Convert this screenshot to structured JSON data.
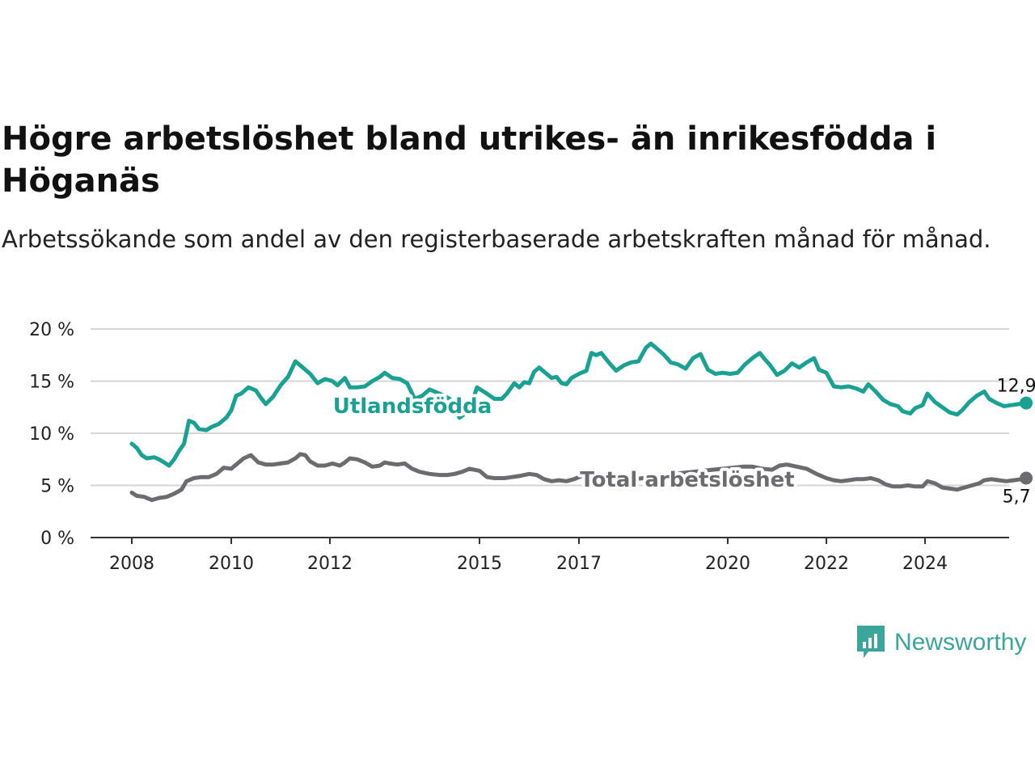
{
  "title": "Högre arbetslöshet bland utrikes- än inrikesfödda i Höganäs",
  "subtitle": "Arbetssökande som andel av den registerbaserade arbetskraften månad för månad.",
  "brand": {
    "name": "Newsworthy",
    "color": "#3aa59a"
  },
  "chart_data": {
    "type": "line",
    "x_unit": "year",
    "xlim": [
      2008,
      2025
    ],
    "ylim": [
      0,
      20
    ],
    "y_ticks": [
      0,
      5,
      10,
      15,
      20
    ],
    "y_tick_labels": [
      "0 %",
      "5 %",
      "10 %",
      "15 %",
      "20 %"
    ],
    "x_ticks": [
      2008,
      2010,
      2012,
      2015,
      2017,
      2020,
      2022,
      2024
    ],
    "x_tick_labels": [
      "2008",
      "2010",
      "2012",
      "2015",
      "2017",
      "2020",
      "2022",
      "2024"
    ],
    "grid": true,
    "series": [
      {
        "name": "Utlandsfödda",
        "color": "#1aa193",
        "end_label": "12,9 %",
        "points": [
          [
            2008.0,
            9.0
          ],
          [
            2008.1,
            8.6
          ],
          [
            2008.2,
            7.9
          ],
          [
            2008.3,
            7.6
          ],
          [
            2008.45,
            7.7
          ],
          [
            2008.55,
            7.5
          ],
          [
            2008.65,
            7.2
          ],
          [
            2008.75,
            6.9
          ],
          [
            2008.85,
            7.5
          ],
          [
            2008.95,
            8.3
          ],
          [
            2009.05,
            9.0
          ],
          [
            2009.15,
            11.2
          ],
          [
            2009.25,
            11.0
          ],
          [
            2009.35,
            10.4
          ],
          [
            2009.5,
            10.3
          ],
          [
            2009.6,
            10.6
          ],
          [
            2009.75,
            10.9
          ],
          [
            2009.9,
            11.5
          ],
          [
            2010.0,
            12.2
          ],
          [
            2010.1,
            13.6
          ],
          [
            2010.2,
            13.8
          ],
          [
            2010.35,
            14.4
          ],
          [
            2010.5,
            14.1
          ],
          [
            2010.6,
            13.4
          ],
          [
            2010.7,
            12.8
          ],
          [
            2010.85,
            13.5
          ],
          [
            2011.0,
            14.6
          ],
          [
            2011.15,
            15.4
          ],
          [
            2011.3,
            16.9
          ],
          [
            2011.45,
            16.3
          ],
          [
            2011.6,
            15.7
          ],
          [
            2011.75,
            14.8
          ],
          [
            2011.9,
            15.2
          ],
          [
            2012.05,
            15.0
          ],
          [
            2012.15,
            14.6
          ],
          [
            2012.3,
            15.3
          ],
          [
            2012.4,
            14.4
          ],
          [
            2012.55,
            14.4
          ],
          [
            2012.7,
            14.5
          ],
          [
            2012.85,
            15.0
          ],
          [
            2013.0,
            15.4
          ],
          [
            2013.1,
            15.8
          ],
          [
            2013.25,
            15.3
          ],
          [
            2013.4,
            15.2
          ],
          [
            2013.55,
            14.8
          ],
          [
            2013.7,
            13.3
          ],
          [
            2013.85,
            13.6
          ],
          [
            2014.0,
            14.2
          ],
          [
            2014.2,
            13.8
          ],
          [
            2014.4,
            13.3
          ],
          [
            2014.6,
            11.5
          ],
          [
            2014.8,
            12.2
          ],
          [
            2014.95,
            14.4
          ],
          [
            2015.15,
            13.8
          ],
          [
            2015.3,
            13.3
          ],
          [
            2015.45,
            13.3
          ],
          [
            2015.55,
            13.8
          ],
          [
            2015.7,
            14.8
          ],
          [
            2015.8,
            14.4
          ],
          [
            2015.9,
            14.9
          ],
          [
            2016.0,
            14.8
          ],
          [
            2016.1,
            15.9
          ],
          [
            2016.2,
            16.3
          ],
          [
            2016.35,
            15.7
          ],
          [
            2016.45,
            15.3
          ],
          [
            2016.55,
            15.4
          ],
          [
            2016.65,
            14.8
          ],
          [
            2016.75,
            14.7
          ],
          [
            2016.85,
            15.3
          ],
          [
            2017.0,
            15.7
          ],
          [
            2017.15,
            16.0
          ],
          [
            2017.25,
            17.7
          ],
          [
            2017.35,
            17.5
          ],
          [
            2017.45,
            17.7
          ],
          [
            2017.6,
            16.8
          ],
          [
            2017.75,
            16.0
          ],
          [
            2017.9,
            16.5
          ],
          [
            2018.05,
            16.8
          ],
          [
            2018.2,
            16.9
          ],
          [
            2018.35,
            18.2
          ],
          [
            2018.45,
            18.6
          ],
          [
            2018.55,
            18.2
          ],
          [
            2018.7,
            17.6
          ],
          [
            2018.85,
            16.8
          ],
          [
            2019.0,
            16.6
          ],
          [
            2019.15,
            16.2
          ],
          [
            2019.3,
            17.2
          ],
          [
            2019.45,
            17.6
          ],
          [
            2019.6,
            16.1
          ],
          [
            2019.75,
            15.7
          ],
          [
            2019.9,
            15.8
          ],
          [
            2020.05,
            15.7
          ],
          [
            2020.2,
            15.8
          ],
          [
            2020.35,
            16.6
          ],
          [
            2020.5,
            17.2
          ],
          [
            2020.65,
            17.7
          ],
          [
            2020.75,
            17.1
          ],
          [
            2020.85,
            16.6
          ],
          [
            2021.0,
            15.6
          ],
          [
            2021.15,
            16.0
          ],
          [
            2021.3,
            16.7
          ],
          [
            2021.45,
            16.3
          ],
          [
            2021.6,
            16.8
          ],
          [
            2021.75,
            17.2
          ],
          [
            2021.85,
            16.1
          ],
          [
            2022.0,
            15.8
          ],
          [
            2022.15,
            14.5
          ],
          [
            2022.3,
            14.4
          ],
          [
            2022.45,
            14.5
          ],
          [
            2022.6,
            14.3
          ],
          [
            2022.75,
            14.0
          ],
          [
            2022.85,
            14.7
          ],
          [
            2023.0,
            14.0
          ],
          [
            2023.15,
            13.2
          ],
          [
            2023.3,
            12.8
          ],
          [
            2023.45,
            12.6
          ],
          [
            2023.55,
            12.1
          ],
          [
            2023.7,
            11.9
          ],
          [
            2023.8,
            12.4
          ],
          [
            2023.95,
            12.7
          ],
          [
            2024.05,
            13.8
          ],
          [
            2024.2,
            13.0
          ],
          [
            2024.35,
            12.5
          ],
          [
            2024.5,
            12.0
          ],
          [
            2024.65,
            11.8
          ],
          [
            2024.75,
            12.2
          ],
          [
            2024.9,
            13.0
          ],
          [
            2025.05,
            13.6
          ],
          [
            2025.2,
            14.0
          ],
          [
            2025.3,
            13.3
          ],
          [
            2025.45,
            12.9
          ],
          [
            2025.6,
            12.6
          ],
          [
            2025.75,
            12.7
          ],
          [
            2025.9,
            12.8
          ],
          [
            2026.05,
            12.9
          ]
        ]
      },
      {
        "name": "Total arbetslöshet",
        "color": "#6c6c70",
        "end_label": "5,7 %",
        "points": [
          [
            2008.0,
            4.3
          ],
          [
            2008.1,
            4.0
          ],
          [
            2008.25,
            3.9
          ],
          [
            2008.4,
            3.6
          ],
          [
            2008.55,
            3.8
          ],
          [
            2008.7,
            3.9
          ],
          [
            2008.85,
            4.2
          ],
          [
            2009.0,
            4.6
          ],
          [
            2009.1,
            5.4
          ],
          [
            2009.25,
            5.7
          ],
          [
            2009.4,
            5.8
          ],
          [
            2009.55,
            5.8
          ],
          [
            2009.7,
            6.1
          ],
          [
            2009.85,
            6.7
          ],
          [
            2010.0,
            6.6
          ],
          [
            2010.1,
            7.0
          ],
          [
            2010.25,
            7.6
          ],
          [
            2010.4,
            7.9
          ],
          [
            2010.55,
            7.2
          ],
          [
            2010.7,
            7.0
          ],
          [
            2010.85,
            7.0
          ],
          [
            2011.0,
            7.1
          ],
          [
            2011.15,
            7.2
          ],
          [
            2011.3,
            7.6
          ],
          [
            2011.4,
            8.0
          ],
          [
            2011.5,
            7.9
          ],
          [
            2011.6,
            7.3
          ],
          [
            2011.75,
            6.9
          ],
          [
            2011.9,
            6.9
          ],
          [
            2012.05,
            7.1
          ],
          [
            2012.2,
            6.9
          ],
          [
            2012.3,
            7.2
          ],
          [
            2012.4,
            7.6
          ],
          [
            2012.55,
            7.5
          ],
          [
            2012.7,
            7.2
          ],
          [
            2012.85,
            6.8
          ],
          [
            2013.0,
            6.9
          ],
          [
            2013.1,
            7.2
          ],
          [
            2013.2,
            7.1
          ],
          [
            2013.35,
            7.0
          ],
          [
            2013.5,
            7.1
          ],
          [
            2013.65,
            6.6
          ],
          [
            2013.8,
            6.3
          ],
          [
            2014.0,
            6.1
          ],
          [
            2014.2,
            6.0
          ],
          [
            2014.35,
            6.0
          ],
          [
            2014.5,
            6.1
          ],
          [
            2014.65,
            6.3
          ],
          [
            2014.8,
            6.6
          ],
          [
            2015.0,
            6.4
          ],
          [
            2015.15,
            5.8
          ],
          [
            2015.3,
            5.7
          ],
          [
            2015.5,
            5.7
          ],
          [
            2015.65,
            5.8
          ],
          [
            2015.8,
            5.9
          ],
          [
            2016.0,
            6.1
          ],
          [
            2016.15,
            6.0
          ],
          [
            2016.3,
            5.6
          ],
          [
            2016.45,
            5.4
          ],
          [
            2016.6,
            5.5
          ],
          [
            2016.75,
            5.4
          ],
          [
            2016.9,
            5.6
          ],
          [
            2017.0,
            5.8
          ],
          [
            2017.15,
            6.0
          ],
          [
            2017.3,
            5.8
          ],
          [
            2017.45,
            5.4
          ],
          [
            2017.6,
            5.3
          ],
          [
            2017.75,
            5.4
          ],
          [
            2017.9,
            5.5
          ],
          [
            2018.1,
            5.6
          ],
          [
            2018.3,
            5.7
          ],
          [
            2018.5,
            5.9
          ],
          [
            2018.7,
            6.0
          ],
          [
            2018.9,
            6.1
          ],
          [
            2019.1,
            6.2
          ],
          [
            2019.3,
            6.3
          ],
          [
            2019.5,
            6.4
          ],
          [
            2019.7,
            6.5
          ],
          [
            2019.9,
            6.6
          ],
          [
            2020.1,
            6.7
          ],
          [
            2020.3,
            6.8
          ],
          [
            2020.5,
            6.8
          ],
          [
            2020.7,
            6.6
          ],
          [
            2020.9,
            6.5
          ],
          [
            2021.05,
            6.9
          ],
          [
            2021.2,
            7.0
          ],
          [
            2021.4,
            6.8
          ],
          [
            2021.6,
            6.6
          ],
          [
            2021.8,
            6.1
          ],
          [
            2022.0,
            5.7
          ],
          [
            2022.15,
            5.5
          ],
          [
            2022.3,
            5.4
          ],
          [
            2022.45,
            5.5
          ],
          [
            2022.6,
            5.6
          ],
          [
            2022.75,
            5.6
          ],
          [
            2022.9,
            5.7
          ],
          [
            2023.05,
            5.5
          ],
          [
            2023.2,
            5.1
          ],
          [
            2023.35,
            4.9
          ],
          [
            2023.5,
            4.9
          ],
          [
            2023.65,
            5.0
          ],
          [
            2023.8,
            4.9
          ],
          [
            2023.95,
            4.9
          ],
          [
            2024.05,
            5.4
          ],
          [
            2024.2,
            5.2
          ],
          [
            2024.35,
            4.8
          ],
          [
            2024.5,
            4.7
          ],
          [
            2024.65,
            4.6
          ],
          [
            2024.8,
            4.8
          ],
          [
            2024.95,
            5.0
          ],
          [
            2025.1,
            5.2
          ],
          [
            2025.2,
            5.5
          ],
          [
            2025.35,
            5.6
          ],
          [
            2025.5,
            5.5
          ],
          [
            2025.65,
            5.4
          ],
          [
            2025.8,
            5.5
          ],
          [
            2025.95,
            5.6
          ],
          [
            2026.05,
            5.7
          ]
        ]
      }
    ]
  }
}
